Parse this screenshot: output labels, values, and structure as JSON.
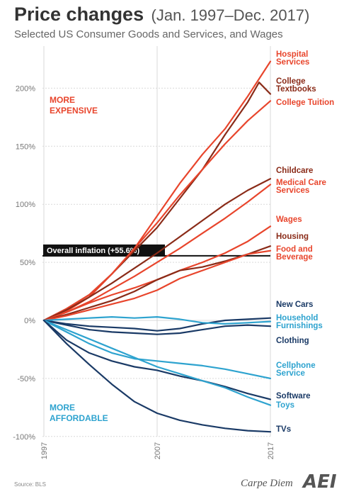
{
  "title": {
    "main": "Price changes",
    "sub": "(Jan. 1997–Dec. 2017)"
  },
  "subtitle": "Selected US Consumer Goods and Services, and Wages",
  "annotations": {
    "more_expensive": [
      "MORE",
      "EXPENSIVE"
    ],
    "more_affordable": [
      "MORE",
      "AFFORDABLE"
    ],
    "inflation": "Overall inflation (+55.6%)"
  },
  "source": "Source: BLS",
  "brand": "Carpe Diem",
  "logo": "AEI",
  "colors": {
    "bright_red": "#e8452c",
    "dark_red": "#8a2b18",
    "light_blue": "#2ea3cf",
    "navy": "#1a3a66",
    "grid": "#d9d9d9",
    "inflation_bar": "#111111"
  },
  "chart_data": {
    "type": "line",
    "x_range": [
      1997,
      2017
    ],
    "ylim": [
      -100,
      225
    ],
    "y_ticks": [
      {
        "value": 200,
        "label": "200%"
      },
      {
        "value": 150,
        "label": "150%"
      },
      {
        "value": 100,
        "label": "100%"
      },
      {
        "value": 50,
        "label": "50%"
      },
      {
        "value": 0,
        "label": "0%"
      },
      {
        "value": -50,
        "label": "-50%"
      },
      {
        "value": -100,
        "label": "-100%"
      }
    ],
    "x_ticks": [
      {
        "value": 1997,
        "label": "1997"
      },
      {
        "value": 2007,
        "label": "2007"
      },
      {
        "value": 2017,
        "label": "2017"
      }
    ],
    "grid": true,
    "inflation_level": 55.6,
    "series": [
      {
        "name": "Hospital Services",
        "label_lines": [
          "Hospital",
          "Services"
        ],
        "color": "#e8452c",
        "x": [
          1997,
          1999,
          2001,
          2003,
          2005,
          2007,
          2009,
          2011,
          2013,
          2015,
          2017
        ],
        "y": [
          0,
          8,
          20,
          40,
          62,
          90,
          118,
          143,
          165,
          193,
          223
        ]
      },
      {
        "name": "College Textbooks",
        "label_lines": [
          "College",
          "Textbooks"
        ],
        "color": "#8a2b18",
        "x": [
          1997,
          1999,
          2001,
          2003,
          2005,
          2007,
          2009,
          2011,
          2013,
          2015,
          2016,
          2017
        ],
        "y": [
          0,
          10,
          22,
          40,
          60,
          80,
          105,
          130,
          160,
          188,
          205,
          195
        ]
      },
      {
        "name": "College Tuition",
        "label_lines": [
          "College Tuition"
        ],
        "color": "#e8452c",
        "x": [
          1997,
          1999,
          2001,
          2003,
          2005,
          2007,
          2009,
          2011,
          2013,
          2015,
          2017
        ],
        "y": [
          0,
          10,
          22,
          40,
          62,
          84,
          108,
          130,
          152,
          172,
          189
        ]
      },
      {
        "name": "Childcare",
        "label_lines": [
          "Childcare"
        ],
        "color": "#8a2b18",
        "x": [
          1997,
          1999,
          2001,
          2003,
          2005,
          2007,
          2009,
          2011,
          2013,
          2015,
          2017
        ],
        "y": [
          0,
          9,
          20,
          32,
          45,
          58,
          72,
          86,
          100,
          112,
          122
        ]
      },
      {
        "name": "Medical Care Services",
        "label_lines": [
          "Medical Care",
          "Services"
        ],
        "color": "#e8452c",
        "x": [
          1997,
          1999,
          2001,
          2003,
          2005,
          2007,
          2009,
          2011,
          2013,
          2015,
          2017
        ],
        "y": [
          0,
          7,
          16,
          27,
          38,
          50,
          62,
          75,
          88,
          102,
          117
        ]
      },
      {
        "name": "Wages",
        "label_lines": [
          "Wages"
        ],
        "color": "#e8452c",
        "x": [
          1997,
          1999,
          2001,
          2003,
          2005,
          2007,
          2009,
          2011,
          2013,
          2015,
          2017
        ],
        "y": [
          0,
          7,
          15,
          22,
          28,
          35,
          43,
          50,
          58,
          68,
          81
        ]
      },
      {
        "name": "Housing",
        "label_lines": [
          "Housing"
        ],
        "color": "#8a2b18",
        "x": [
          1997,
          1999,
          2001,
          2003,
          2005,
          2007,
          2009,
          2011,
          2013,
          2015,
          2017
        ],
        "y": [
          0,
          5,
          11,
          17,
          25,
          35,
          43,
          46,
          51,
          57,
          64
        ]
      },
      {
        "name": "Food and Beverage",
        "label_lines": [
          "Food and",
          "Beverage"
        ],
        "color": "#e8452c",
        "x": [
          1997,
          1999,
          2001,
          2003,
          2005,
          2007,
          2009,
          2011,
          2013,
          2015,
          2017
        ],
        "y": [
          0,
          4,
          9,
          14,
          19,
          26,
          36,
          43,
          50,
          57,
          60
        ]
      },
      {
        "name": "New Cars",
        "label_lines": [
          "New Cars"
        ],
        "color": "#1a3a66",
        "x": [
          1997,
          1999,
          2001,
          2003,
          2005,
          2007,
          2009,
          2011,
          2013,
          2015,
          2017
        ],
        "y": [
          0,
          -3,
          -5,
          -6,
          -7,
          -9,
          -7,
          -3,
          0,
          1,
          2
        ]
      },
      {
        "name": "Household Furnishings",
        "label_lines": [
          "Household",
          "Furnishings"
        ],
        "color": "#2ea3cf",
        "x": [
          1997,
          1999,
          2001,
          2003,
          2005,
          2007,
          2009,
          2011,
          2013,
          2015,
          2017
        ],
        "y": [
          0,
          1,
          2,
          3,
          2,
          3,
          1,
          -2,
          -3,
          -2,
          -1
        ]
      },
      {
        "name": "Clothing",
        "label_lines": [
          "Clothing"
        ],
        "color": "#1a3a66",
        "x": [
          1997,
          1999,
          2001,
          2003,
          2005,
          2007,
          2009,
          2011,
          2013,
          2015,
          2017
        ],
        "y": [
          0,
          -4,
          -8,
          -10,
          -11,
          -12,
          -11,
          -8,
          -5,
          -4,
          -5
        ]
      },
      {
        "name": "Cellphone Service",
        "label_lines": [
          "Cellphone",
          "Service"
        ],
        "color": "#2ea3cf",
        "x": [
          1997,
          1999,
          2001,
          2003,
          2005,
          2007,
          2009,
          2011,
          2013,
          2015,
          2017
        ],
        "y": [
          0,
          -10,
          -20,
          -28,
          -33,
          -35,
          -37,
          -39,
          -42,
          -46,
          -50
        ]
      },
      {
        "name": "Software",
        "label_lines": [
          "Software"
        ],
        "color": "#1a3a66",
        "x": [
          1997,
          1999,
          2001,
          2003,
          2005,
          2007,
          2009,
          2011,
          2013,
          2015,
          2017
        ],
        "y": [
          0,
          -17,
          -28,
          -35,
          -40,
          -43,
          -48,
          -52,
          -57,
          -63,
          -68
        ]
      },
      {
        "name": "Toys",
        "label_lines": [
          "Toys"
        ],
        "color": "#2ea3cf",
        "x": [
          1997,
          1999,
          2001,
          2003,
          2005,
          2007,
          2009,
          2011,
          2013,
          2015,
          2017
        ],
        "y": [
          0,
          -8,
          -16,
          -24,
          -32,
          -40,
          -46,
          -52,
          -58,
          -66,
          -73
        ]
      },
      {
        "name": "TVs",
        "label_lines": [
          "TVs"
        ],
        "color": "#1a3a66",
        "x": [
          1997,
          1999,
          2001,
          2003,
          2005,
          2007,
          2009,
          2011,
          2013,
          2015,
          2017
        ],
        "y": [
          0,
          -20,
          -38,
          -55,
          -70,
          -80,
          -86,
          -90,
          -93,
          -95,
          -96
        ]
      }
    ]
  }
}
